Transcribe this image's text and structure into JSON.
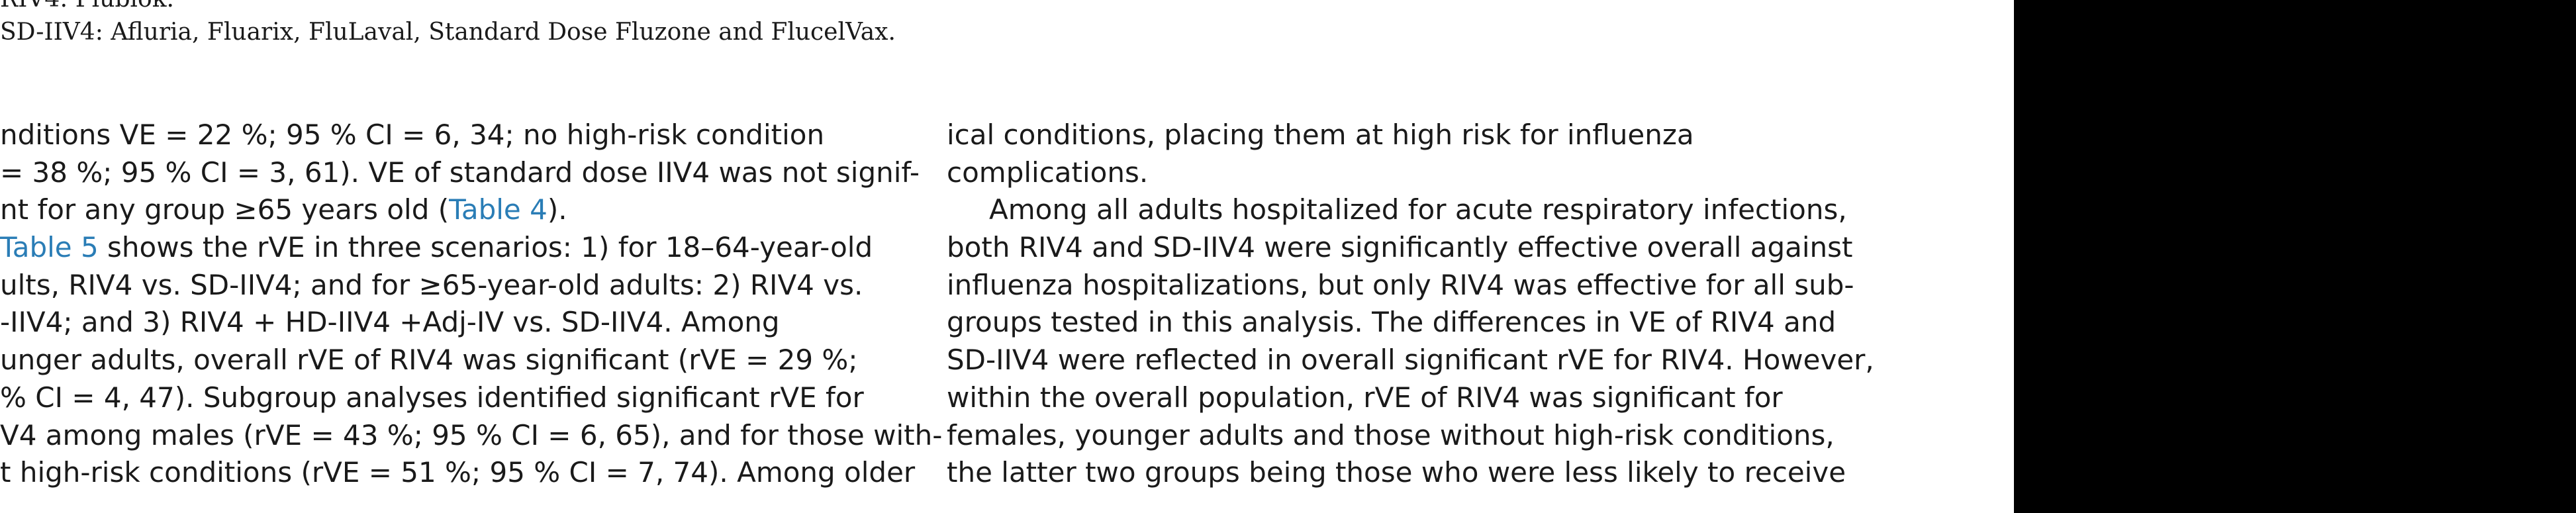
{
  "footnotes": [
    "RIV4: Flublok.",
    "SD-IIV4: Afluria, Fluarix, FluLaval, Standard Dose Fluzone and FlucelVax."
  ],
  "left_column": {
    "lines": [
      "nditions VE = 22 %; 95 % CI = 6, 34; no high-risk condition",
      "= 38 %; 95 % CI = 3, 61). VE of standard dose IIV4 was not signif-",
      "nt for any group ≥65 years old (",
      "Table 5",
      " shows the rVE in three scenarios: 1) for 18–64-year-old",
      "ults, RIV4 vs. SD-IIV4; and for ≥65-year-old adults: 2) RIV4 vs.",
      "-IIV4; and 3) RIV4 + HD-IIV4 +Adj-IV vs. SD-IIV4. Among",
      "unger adults, overall rVE of RIV4 was significant (rVE = 29 %;",
      "% CI = 4, 47). Subgroup analyses identified significant rVE for",
      "V4 among males (rVE = 43 %; 95 % CI = 6, 65), and for those with-",
      "t high-risk conditions (rVE = 51 %; 95 % CI = 7, 74). Among older"
    ],
    "ref_table4": "Table 4",
    "ref_table4_suffix": ")."
  },
  "right_column": {
    "lines": [
      "ical conditions, placing them at high risk for influenza",
      "complications.",
      "Among all adults hospitalized for acute respiratory infections,",
      "both RIV4 and SD-IIV4 were significantly effective overall against",
      "influenza hospitalizations, but only RIV4 was effective for all sub-",
      "groups tested in this analysis. The differences in VE of RIV4 and",
      "SD-IIV4 were reflected in overall significant rVE for RIV4. However,",
      "within the overall population, rVE of RIV4 was significant for",
      "females, younger adults and those without high-risk conditions,",
      "the latter two groups being those who were less likely to receive"
    ]
  },
  "colors": {
    "link": "#2a7db6",
    "text": "#1a1a1a",
    "background": "#ffffff",
    "sidebar": "#000000"
  }
}
